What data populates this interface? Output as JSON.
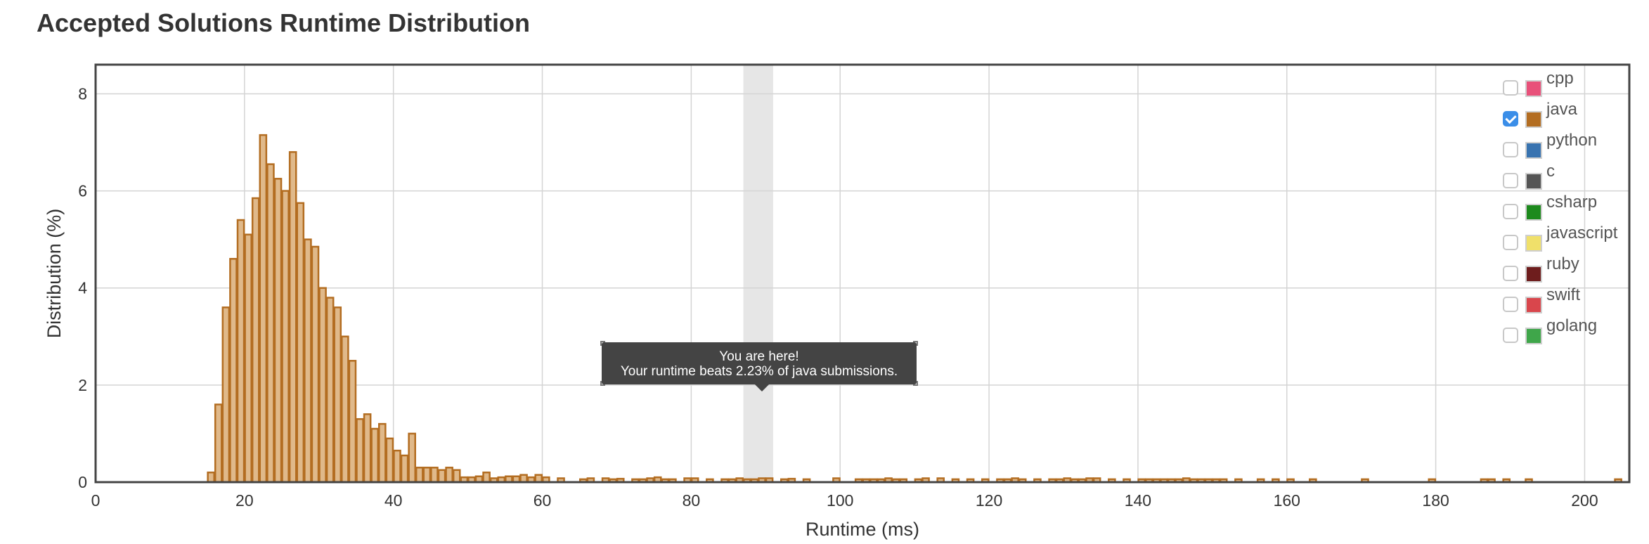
{
  "page": {
    "title": "Accepted Solutions Runtime Distribution"
  },
  "tooltip": {
    "line1": "You are here!",
    "line2": "Your runtime beats 2.23% of java submissions."
  },
  "legend": [
    {
      "name": "cpp",
      "color": "#e8517a",
      "checked": false
    },
    {
      "name": "java",
      "color": "#b36d21",
      "checked": true
    },
    {
      "name": "python",
      "color": "#3873b0",
      "checked": false
    },
    {
      "name": "c",
      "color": "#555555",
      "checked": false
    },
    {
      "name": "csharp",
      "color": "#1d8a1d",
      "checked": false
    },
    {
      "name": "javascript",
      "color": "#f0e06a",
      "checked": false
    },
    {
      "name": "ruby",
      "color": "#6e1d1d",
      "checked": false
    },
    {
      "name": "swift",
      "color": "#d9464c",
      "checked": false
    },
    {
      "name": "golang",
      "color": "#3fa64a",
      "checked": false
    }
  ],
  "chart_data": {
    "type": "bar",
    "title": "Accepted Solutions Runtime Distribution",
    "xlabel": "Runtime (ms)",
    "ylabel": "Distribution (%)",
    "xlim": [
      0,
      206
    ],
    "ylim": [
      0,
      8.6
    ],
    "xticks": [
      0,
      20,
      40,
      60,
      80,
      100,
      120,
      140,
      160,
      180,
      200
    ],
    "yticks": [
      0,
      2,
      4,
      6,
      8
    ],
    "grid": true,
    "legend_position": "top-right",
    "bin_width_ms": 1,
    "highlight_range": [
      87,
      91
    ],
    "bar_fill": "#e0b98a",
    "bar_stroke": "#b36d21",
    "highlight_color": "#e6e6e6",
    "series": [
      {
        "name": "java",
        "x": [
          15,
          16,
          17,
          18,
          19,
          20,
          21,
          22,
          23,
          24,
          25,
          26,
          27,
          28,
          29,
          30,
          31,
          32,
          33,
          34,
          35,
          36,
          37,
          38,
          39,
          40,
          41,
          42,
          43,
          44,
          45,
          46,
          47,
          48,
          49,
          50,
          51,
          52,
          53,
          54,
          55,
          56,
          57,
          58,
          59,
          60,
          62,
          65,
          66,
          68,
          69,
          70,
          72,
          73,
          74,
          75,
          76,
          77,
          79,
          80,
          82,
          84,
          85,
          86,
          87,
          88,
          89,
          90,
          92,
          93,
          95,
          99,
          102,
          103,
          104,
          105,
          106,
          107,
          108,
          110,
          111,
          113,
          115,
          117,
          119,
          121,
          122,
          123,
          124,
          126,
          128,
          129,
          130,
          131,
          132,
          133,
          134,
          136,
          138,
          140,
          141,
          142,
          143,
          144,
          145,
          146,
          147,
          148,
          149,
          150,
          151,
          153,
          156,
          158,
          160,
          163,
          170,
          179,
          186,
          187,
          189,
          192,
          204
        ],
        "values": [
          0.2,
          1.6,
          3.6,
          4.6,
          5.4,
          5.1,
          5.85,
          7.15,
          6.55,
          6.25,
          6.0,
          6.8,
          5.75,
          5.0,
          4.85,
          4.0,
          3.8,
          3.6,
          3.0,
          2.5,
          1.3,
          1.4,
          1.1,
          1.2,
          0.9,
          0.65,
          0.55,
          1.0,
          0.3,
          0.3,
          0.3,
          0.25,
          0.3,
          0.25,
          0.1,
          0.1,
          0.12,
          0.2,
          0.08,
          0.1,
          0.12,
          0.12,
          0.15,
          0.1,
          0.15,
          0.1,
          0.08,
          0.06,
          0.08,
          0.08,
          0.06,
          0.07,
          0.06,
          0.06,
          0.08,
          0.1,
          0.06,
          0.06,
          0.08,
          0.08,
          0.06,
          0.06,
          0.06,
          0.08,
          0.06,
          0.06,
          0.08,
          0.08,
          0.06,
          0.07,
          0.06,
          0.08,
          0.06,
          0.06,
          0.06,
          0.06,
          0.08,
          0.06,
          0.06,
          0.06,
          0.08,
          0.08,
          0.06,
          0.06,
          0.06,
          0.06,
          0.06,
          0.08,
          0.06,
          0.06,
          0.06,
          0.06,
          0.08,
          0.06,
          0.06,
          0.08,
          0.08,
          0.06,
          0.06,
          0.06,
          0.06,
          0.06,
          0.06,
          0.06,
          0.06,
          0.08,
          0.06,
          0.06,
          0.06,
          0.06,
          0.06,
          0.06,
          0.06,
          0.06,
          0.06,
          0.06,
          0.06,
          0.06,
          0.06,
          0.06,
          0.06,
          0.06,
          0.06
        ]
      }
    ]
  }
}
